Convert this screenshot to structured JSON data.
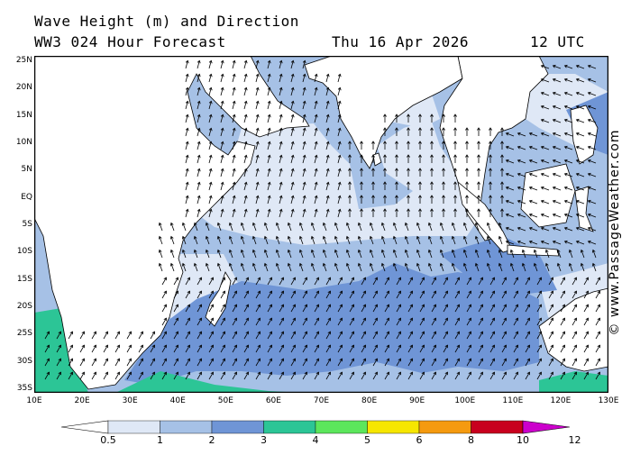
{
  "header": {
    "title": "Wave Height (m) and Direction",
    "model": "WW3 024 Hour Forecast",
    "date": "Thu 16 Apr 2026",
    "time": "12 UTC"
  },
  "map": {
    "lat_labels": [
      "25N",
      "20N",
      "15N",
      "10N",
      "5N",
      "EQ",
      "5S",
      "10S",
      "15S",
      "20S",
      "25S",
      "30S",
      "35S"
    ],
    "lon_labels": [
      "10E",
      "20E",
      "30E",
      "40E",
      "50E",
      "60E",
      "70E",
      "80E",
      "90E",
      "100E",
      "110E",
      "120E",
      "130E"
    ],
    "colors": {
      "land": "#ffffff",
      "calm": "#ffffff",
      "band_0_5_1": "#dfe8f6",
      "band_1_2": "#a6c1e6",
      "band_2_3": "#6f95d6",
      "band_3_4": "#2cc596",
      "borders": "#b0b0b0",
      "coast": "#000000"
    }
  },
  "credit": "© www.PassageWeather.com",
  "legend": {
    "ticks": [
      "0.5",
      "1",
      "2",
      "3",
      "4",
      "5",
      "6",
      "8",
      "10",
      "12"
    ],
    "colors": [
      "#dfe8f6",
      "#a6c1e6",
      "#6f95d6",
      "#2cc596",
      "#5ce65c",
      "#f6e600",
      "#f59a0f",
      "#ef4a3c",
      "#c8001e",
      "#cc00cc"
    ]
  }
}
